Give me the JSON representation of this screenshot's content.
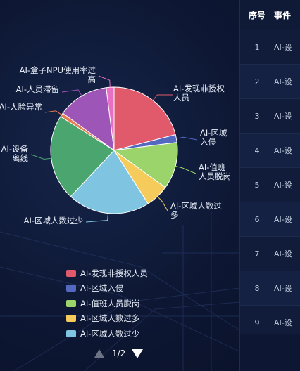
{
  "chart_data": {
    "type": "pie",
    "slices": [
      {
        "label": "AI-发现非授权人员",
        "value": 21,
        "color": "#e05a6b"
      },
      {
        "label": "AI-区域入侵",
        "value": 2,
        "color": "#5468c0"
      },
      {
        "label": "AI-值班人员脱岗",
        "value": 12,
        "color": "#9ad46a"
      },
      {
        "label": "AI-区域人数过多",
        "value": 6,
        "color": "#f5cc5c"
      },
      {
        "label": "AI-区域人数过少",
        "value": 21,
        "color": "#7fc4e0"
      },
      {
        "label": "AI-设备离线",
        "value": 22,
        "color": "#4aa66e"
      },
      {
        "label": "AI-人脸异常",
        "value": 1,
        "color": "#e87a4f"
      },
      {
        "label": "AI-人员滞留",
        "value": 13,
        "color": "#9e55b8"
      },
      {
        "label": "AI-盒子NPU使用率过高",
        "value": 2,
        "color": "#e770c4"
      }
    ]
  },
  "legend": {
    "page": "1/2"
  },
  "table": {
    "headers": {
      "no": "序号",
      "event": "事件"
    },
    "rows": [
      {
        "no": "1",
        "event": "AI-设"
      },
      {
        "no": "2",
        "event": "AI-设"
      },
      {
        "no": "3",
        "event": "AI-设"
      },
      {
        "no": "4",
        "event": "AI-设"
      },
      {
        "no": "5",
        "event": "AI-设"
      },
      {
        "no": "6",
        "event": "AI-设"
      },
      {
        "no": "7",
        "event": "AI-设"
      },
      {
        "no": "8",
        "event": "AI-设"
      },
      {
        "no": "9",
        "event": "AI-设"
      }
    ]
  }
}
